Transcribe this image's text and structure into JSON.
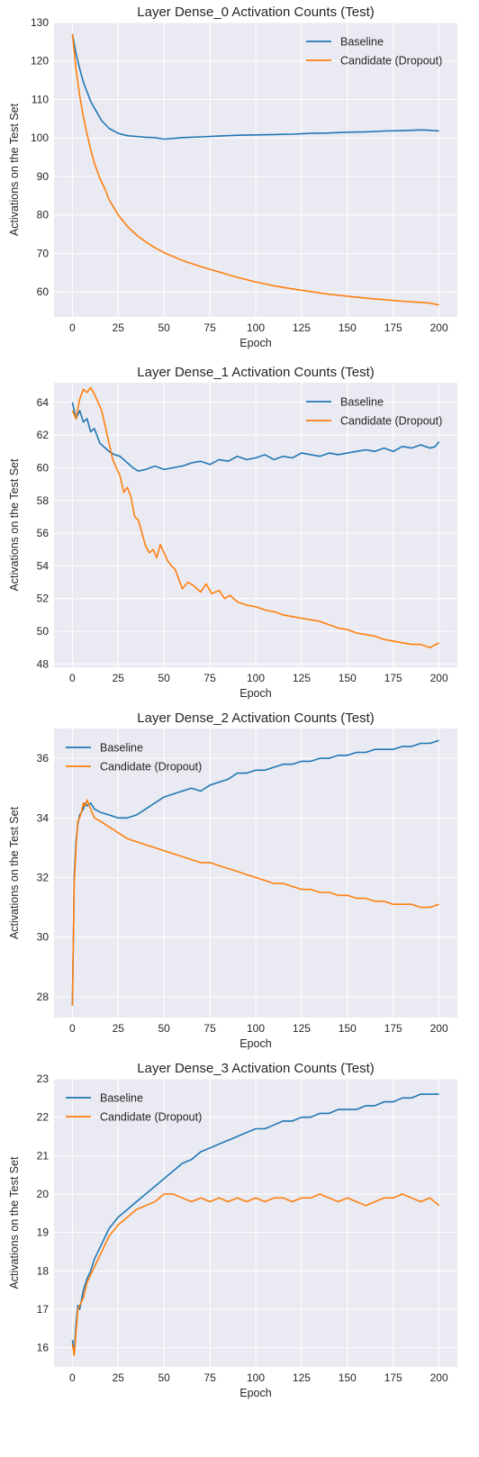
{
  "chart_data": [
    {
      "type": "line",
      "title": "Layer Dense_0 Activation Counts (Test)",
      "xlabel": "Epoch",
      "ylabel": "Activations on the Test Set",
      "xlim": [
        -10,
        210
      ],
      "ylim": [
        53.5,
        130
      ],
      "xticks": [
        0,
        25,
        50,
        75,
        100,
        125,
        150,
        175,
        200
      ],
      "yticks": [
        60,
        70,
        80,
        90,
        100,
        110,
        120,
        130
      ],
      "legend": "top-right",
      "grid": true,
      "series": [
        {
          "name": "Baseline",
          "color": "#1f77b4",
          "x": [
            0,
            2,
            4,
            6,
            8,
            10,
            13,
            16,
            20,
            25,
            30,
            35,
            40,
            45,
            50,
            55,
            60,
            70,
            80,
            90,
            100,
            110,
            120,
            130,
            140,
            150,
            160,
            170,
            180,
            190,
            195,
            200
          ],
          "y": [
            127,
            122,
            118,
            114.5,
            112,
            109.5,
            107,
            104.5,
            102.5,
            101.2,
            100.6,
            100.4,
            100.2,
            100.1,
            99.7,
            99.9,
            100.1,
            100.3,
            100.5,
            100.7,
            100.8,
            100.9,
            101.0,
            101.2,
            101.3,
            101.5,
            101.6,
            101.8,
            101.9,
            102.1,
            102.0,
            101.8
          ]
        },
        {
          "name": "Candidate (Dropout)",
          "color": "#ff7f0e",
          "x": [
            0,
            2,
            4,
            6,
            8,
            10,
            12,
            15,
            18,
            20,
            25,
            30,
            35,
            40,
            45,
            50,
            55,
            60,
            70,
            80,
            90,
            100,
            110,
            120,
            130,
            140,
            150,
            160,
            170,
            180,
            190,
            195,
            200
          ],
          "y": [
            127,
            118,
            111,
            105.5,
            101,
            97,
            93.5,
            89.5,
            86.5,
            84,
            80,
            77,
            74.8,
            73,
            71.5,
            70.2,
            69.2,
            68.2,
            66.6,
            65.2,
            63.8,
            62.6,
            61.6,
            60.8,
            60.1,
            59.4,
            58.9,
            58.4,
            58.0,
            57.6,
            57.3,
            57.1,
            56.6
          ]
        }
      ]
    },
    {
      "type": "line",
      "title": "Layer Dense_1 Activation Counts (Test)",
      "xlabel": "Epoch",
      "ylabel": "Activations on the Test Set",
      "xlim": [
        -10,
        210
      ],
      "ylim": [
        47.8,
        65.2
      ],
      "xticks": [
        0,
        25,
        50,
        75,
        100,
        125,
        150,
        175,
        200
      ],
      "yticks": [
        48,
        50,
        52,
        54,
        56,
        58,
        60,
        62,
        64
      ],
      "legend": "top-right",
      "grid": true,
      "series": [
        {
          "name": "Baseline",
          "color": "#1f77b4",
          "x": [
            0,
            2,
            4,
            6,
            8,
            10,
            12,
            15,
            18,
            20,
            23,
            26,
            30,
            33,
            36,
            40,
            45,
            50,
            55,
            60,
            65,
            70,
            75,
            80,
            85,
            90,
            95,
            100,
            105,
            110,
            115,
            120,
            125,
            130,
            135,
            140,
            145,
            150,
            155,
            160,
            165,
            170,
            175,
            180,
            185,
            190,
            195,
            198,
            200
          ],
          "y": [
            64.0,
            63.0,
            63.5,
            62.8,
            63.0,
            62.2,
            62.4,
            61.5,
            61.2,
            61.0,
            60.8,
            60.7,
            60.3,
            60.0,
            59.8,
            59.9,
            60.1,
            59.9,
            60.0,
            60.1,
            60.3,
            60.4,
            60.2,
            60.5,
            60.4,
            60.7,
            60.5,
            60.6,
            60.8,
            60.5,
            60.7,
            60.6,
            60.9,
            60.8,
            60.7,
            60.9,
            60.8,
            60.9,
            61.0,
            61.1,
            61.0,
            61.2,
            61.0,
            61.3,
            61.2,
            61.4,
            61.2,
            61.3,
            61.6
          ]
        },
        {
          "name": "Candidate (Dropout)",
          "color": "#ff7f0e",
          "x": [
            0,
            2,
            4,
            6,
            8,
            10,
            12,
            14,
            16,
            18,
            20,
            22,
            24,
            26,
            28,
            30,
            32,
            34,
            36,
            38,
            40,
            42,
            44,
            46,
            48,
            50,
            52,
            54,
            56,
            58,
            60,
            63,
            66,
            70,
            73,
            76,
            80,
            83,
            86,
            90,
            95,
            100,
            105,
            110,
            115,
            120,
            125,
            130,
            135,
            140,
            145,
            150,
            155,
            160,
            165,
            170,
            175,
            180,
            185,
            190,
            195,
            200
          ],
          "y": [
            63.5,
            63.0,
            64.2,
            64.8,
            64.6,
            64.9,
            64.5,
            64.0,
            63.5,
            62.5,
            61.5,
            60.5,
            60.0,
            59.5,
            58.5,
            58.8,
            58.2,
            57.0,
            56.8,
            56.0,
            55.2,
            54.8,
            55.0,
            54.5,
            55.3,
            54.8,
            54.3,
            54.0,
            53.8,
            53.2,
            52.6,
            53.0,
            52.8,
            52.4,
            52.9,
            52.3,
            52.5,
            52.0,
            52.2,
            51.8,
            51.6,
            51.5,
            51.3,
            51.2,
            51.0,
            50.9,
            50.8,
            50.7,
            50.6,
            50.4,
            50.2,
            50.1,
            49.9,
            49.8,
            49.7,
            49.5,
            49.4,
            49.3,
            49.2,
            49.2,
            49.0,
            49.3
          ]
        }
      ]
    },
    {
      "type": "line",
      "title": "Layer Dense_2 Activation Counts (Test)",
      "xlabel": "Epoch",
      "ylabel": "Activations on the Test Set",
      "xlim": [
        -10,
        210
      ],
      "ylim": [
        27.3,
        37.0
      ],
      "xticks": [
        0,
        25,
        50,
        75,
        100,
        125,
        150,
        175,
        200
      ],
      "yticks": [
        28,
        30,
        32,
        34,
        36
      ],
      "legend": "top-left",
      "grid": true,
      "series": [
        {
          "name": "Baseline",
          "color": "#1f77b4",
          "x": [
            0,
            1,
            2,
            3,
            4,
            5,
            6,
            7,
            8,
            10,
            12,
            15,
            20,
            25,
            30,
            35,
            40,
            45,
            50,
            55,
            60,
            65,
            70,
            75,
            80,
            85,
            90,
            95,
            100,
            105,
            110,
            115,
            120,
            125,
            130,
            135,
            140,
            145,
            150,
            155,
            160,
            165,
            170,
            175,
            180,
            185,
            190,
            195,
            200
          ],
          "y": [
            27.7,
            32.0,
            33.2,
            33.8,
            34.1,
            34.2,
            34.3,
            34.5,
            34.4,
            34.5,
            34.3,
            34.2,
            34.1,
            34.0,
            34.0,
            34.1,
            34.3,
            34.5,
            34.7,
            34.8,
            34.9,
            35.0,
            34.9,
            35.1,
            35.2,
            35.3,
            35.5,
            35.5,
            35.6,
            35.6,
            35.7,
            35.8,
            35.8,
            35.9,
            35.9,
            36.0,
            36.0,
            36.1,
            36.1,
            36.2,
            36.2,
            36.3,
            36.3,
            36.3,
            36.4,
            36.4,
            36.5,
            36.5,
            36.6
          ]
        },
        {
          "name": "Candidate (Dropout)",
          "color": "#ff7f0e",
          "x": [
            0,
            1,
            2,
            3,
            4,
            5,
            6,
            7,
            8,
            10,
            12,
            15,
            20,
            25,
            30,
            35,
            40,
            45,
            50,
            55,
            60,
            65,
            70,
            75,
            80,
            85,
            90,
            95,
            100,
            105,
            110,
            115,
            120,
            125,
            130,
            135,
            140,
            145,
            150,
            155,
            160,
            165,
            170,
            175,
            180,
            185,
            190,
            195,
            200
          ],
          "y": [
            27.7,
            31.8,
            33.0,
            33.9,
            34.0,
            34.2,
            34.5,
            34.4,
            34.6,
            34.3,
            34.0,
            33.9,
            33.7,
            33.5,
            33.3,
            33.2,
            33.1,
            33.0,
            32.9,
            32.8,
            32.7,
            32.6,
            32.5,
            32.5,
            32.4,
            32.3,
            32.2,
            32.1,
            32.0,
            31.9,
            31.8,
            31.8,
            31.7,
            31.6,
            31.6,
            31.5,
            31.5,
            31.4,
            31.4,
            31.3,
            31.3,
            31.2,
            31.2,
            31.1,
            31.1,
            31.1,
            31.0,
            31.0,
            31.1
          ]
        }
      ]
    },
    {
      "type": "line",
      "title": "Layer Dense_3 Activation Counts (Test)",
      "xlabel": "Epoch",
      "ylabel": "Activations on the Test Set",
      "xlim": [
        -10,
        210
      ],
      "ylim": [
        15.5,
        23.0
      ],
      "xticks": [
        0,
        25,
        50,
        75,
        100,
        125,
        150,
        175,
        200
      ],
      "yticks": [
        16,
        17,
        18,
        19,
        20,
        21,
        22,
        23
      ],
      "legend": "top-left",
      "grid": true,
      "series": [
        {
          "name": "Baseline",
          "color": "#1f77b4",
          "x": [
            0,
            1,
            2,
            3,
            4,
            6,
            8,
            10,
            12,
            15,
            18,
            20,
            25,
            30,
            35,
            40,
            45,
            50,
            55,
            60,
            65,
            70,
            75,
            80,
            85,
            90,
            95,
            100,
            105,
            110,
            115,
            120,
            125,
            130,
            135,
            140,
            145,
            150,
            155,
            160,
            165,
            170,
            175,
            180,
            185,
            190,
            195,
            200
          ],
          "y": [
            16.2,
            15.9,
            16.6,
            17.1,
            17.0,
            17.5,
            17.8,
            18.0,
            18.3,
            18.6,
            18.9,
            19.1,
            19.4,
            19.6,
            19.8,
            20.0,
            20.2,
            20.4,
            20.6,
            20.8,
            20.9,
            21.1,
            21.2,
            21.3,
            21.4,
            21.5,
            21.6,
            21.7,
            21.7,
            21.8,
            21.9,
            21.9,
            22.0,
            22.0,
            22.1,
            22.1,
            22.2,
            22.2,
            22.2,
            22.3,
            22.3,
            22.4,
            22.4,
            22.5,
            22.5,
            22.6,
            22.6,
            22.6
          ]
        },
        {
          "name": "Candidate (Dropout)",
          "color": "#ff7f0e",
          "x": [
            0,
            1,
            2,
            3,
            4,
            6,
            8,
            10,
            12,
            15,
            18,
            20,
            25,
            30,
            35,
            40,
            45,
            50,
            55,
            60,
            65,
            70,
            75,
            80,
            85,
            90,
            95,
            100,
            105,
            110,
            115,
            120,
            125,
            130,
            135,
            140,
            145,
            150,
            155,
            160,
            165,
            170,
            175,
            180,
            185,
            190,
            195,
            200
          ],
          "y": [
            16.1,
            15.8,
            16.4,
            17.0,
            17.1,
            17.3,
            17.7,
            17.9,
            18.1,
            18.4,
            18.7,
            18.9,
            19.2,
            19.4,
            19.6,
            19.7,
            19.8,
            20.0,
            20.0,
            19.9,
            19.8,
            19.9,
            19.8,
            19.9,
            19.8,
            19.9,
            19.8,
            19.9,
            19.8,
            19.9,
            19.9,
            19.8,
            19.9,
            19.9,
            20.0,
            19.9,
            19.8,
            19.9,
            19.8,
            19.7,
            19.8,
            19.9,
            19.9,
            20.0,
            19.9,
            19.8,
            19.9,
            19.7
          ]
        }
      ]
    }
  ]
}
